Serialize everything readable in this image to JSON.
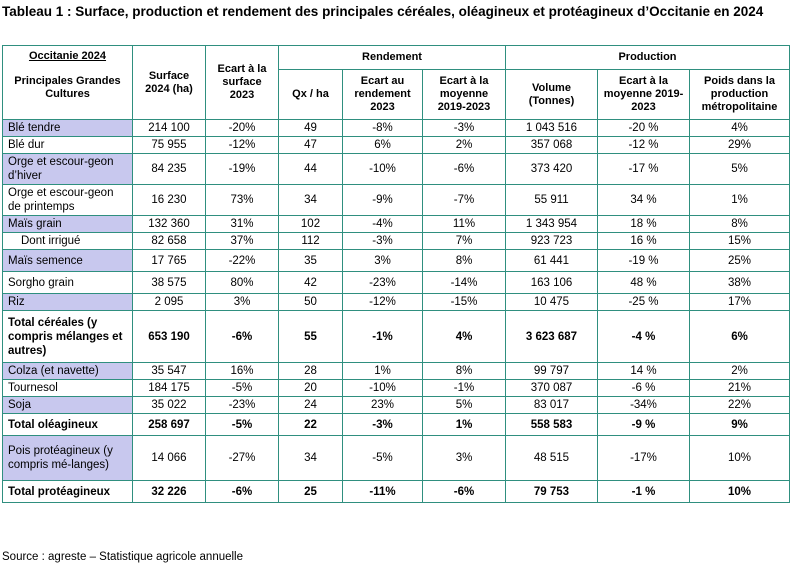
{
  "title": "Tableau 1 : Surface, production et rendement des principales céréales, oléagineux et protéagineux d’Occitanie en 2024",
  "header": {
    "region": "Occitanie 2024",
    "crops": "Principales Grandes Cultures",
    "surface": "Surface 2024 (ha)",
    "ecart_surface": "Ecart à la surface 2023",
    "rendement": "Rendement",
    "qx_ha": "Qx / ha",
    "ecart_rendement": "Ecart au rendement 2023",
    "ecart_moyenne_rdt": "Ecart à la moyenne 2019-2023",
    "production": "Production",
    "volume": "Volume (Tonnes)",
    "ecart_moyenne_prod": "Ecart à la moyenne 2019-2023",
    "poids": "Poids dans la production métropolitaine"
  },
  "rows": [
    {
      "label": "Blé tendre",
      "surface": "214 100",
      "ecart_surface": "-20%",
      "qx": "49",
      "ecart_rdt": "-8%",
      "ecart_moy_rdt": "-3%",
      "volume": "1 043 516",
      "ecart_moy_prod": "-20 %",
      "poids": "4%"
    },
    {
      "label": "Blé dur",
      "surface": "75 955",
      "ecart_surface": "-12%",
      "qx": "47",
      "ecart_rdt": "6%",
      "ecart_moy_rdt": "2%",
      "volume": "357 068",
      "ecart_moy_prod": "-12 %",
      "poids": "29%"
    },
    {
      "label": "Orge et escour-geon d’hiver",
      "surface": "84 235",
      "ecart_surface": "-19%",
      "qx": "44",
      "ecart_rdt": "-10%",
      "ecart_moy_rdt": "-6%",
      "volume": "373 420",
      "ecart_moy_prod": "-17 %",
      "poids": "5%"
    },
    {
      "label": "Orge et escour-geon de printemps",
      "surface": "16 230",
      "ecart_surface": "73%",
      "qx": "34",
      "ecart_rdt": "-9%",
      "ecart_moy_rdt": "-7%",
      "volume": "55 911",
      "ecart_moy_prod": "34 %",
      "poids": "1%"
    },
    {
      "label": "Maïs grain",
      "surface": "132 360",
      "ecart_surface": "31%",
      "qx": "102",
      "ecart_rdt": "-4%",
      "ecart_moy_rdt": "11%",
      "volume": "1 343 954",
      "ecart_moy_prod": "18 %",
      "poids": "8%"
    },
    {
      "label": "Dont irrigué",
      "surface": "82 658",
      "ecart_surface": "37%",
      "qx": "112",
      "ecart_rdt": "-3%",
      "ecart_moy_rdt": "7%",
      "volume": "923 723",
      "ecart_moy_prod": "16 %",
      "poids": "15%"
    },
    {
      "label": "Maïs semence",
      "surface": "17 765",
      "ecart_surface": "-22%",
      "qx": "35",
      "ecart_rdt": "3%",
      "ecart_moy_rdt": "8%",
      "volume": "61 441",
      "ecart_moy_prod": "-19 %",
      "poids": "25%"
    },
    {
      "label": "Sorgho grain",
      "surface": "38 575",
      "ecart_surface": "80%",
      "qx": "42",
      "ecart_rdt": "-23%",
      "ecart_moy_rdt": "-14%",
      "volume": "163 106",
      "ecart_moy_prod": "48 %",
      "poids": "38%"
    },
    {
      "label": "Riz",
      "surface": "2 095",
      "ecart_surface": "3%",
      "qx": "50",
      "ecart_rdt": "-12%",
      "ecart_moy_rdt": "-15%",
      "volume": "10 475",
      "ecart_moy_prod": "-25 %",
      "poids": "17%"
    },
    {
      "label": "Total céréales (y compris mélanges et autres)",
      "surface": "653 190",
      "ecart_surface": "-6%",
      "qx": "55",
      "ecart_rdt": "-1%",
      "ecart_moy_rdt": "4%",
      "volume": "3 623 687",
      "ecart_moy_prod": "-4 %",
      "poids": "6%"
    },
    {
      "label": "Colza (et navette)",
      "surface": "35 547",
      "ecart_surface": "16%",
      "qx": "28",
      "ecart_rdt": "1%",
      "ecart_moy_rdt": "8%",
      "volume": "99 797",
      "ecart_moy_prod": "14 %",
      "poids": "2%"
    },
    {
      "label": "Tournesol",
      "surface": "184 175",
      "ecart_surface": "-5%",
      "qx": "20",
      "ecart_rdt": "-10%",
      "ecart_moy_rdt": "-1%",
      "volume": "370 087",
      "ecart_moy_prod": "-6 %",
      "poids": "21%"
    },
    {
      "label": "Soja",
      "surface": "35 022",
      "ecart_surface": "-23%",
      "qx": "24",
      "ecart_rdt": "23%",
      "ecart_moy_rdt": "5%",
      "volume": "83 017",
      "ecart_moy_prod": "-34%",
      "poids": "22%"
    },
    {
      "label": "Total oléagineux",
      "surface": "258 697",
      "ecart_surface": "-5%",
      "qx": "22",
      "ecart_rdt": "-3%",
      "ecart_moy_rdt": "1%",
      "volume": "558 583",
      "ecart_moy_prod": "-9 %",
      "poids": "9%"
    },
    {
      "label": "Pois protéagineux (y compris mé-langes)",
      "surface": "14 066",
      "ecart_surface": "-27%",
      "qx": "34",
      "ecart_rdt": "-5%",
      "ecart_moy_rdt": "3%",
      "volume": "48 515",
      "ecart_moy_prod": "-17%",
      "poids": "10%"
    },
    {
      "label": "Total protéagineux",
      "surface": "32 226",
      "ecart_surface": "-6%",
      "qx": "25",
      "ecart_rdt": "-11%",
      "ecart_moy_rdt": "-6%",
      "volume": "79 753",
      "ecart_moy_prod": "-1 %",
      "poids": "10%"
    }
  ],
  "source": "Source : agreste – Statistique agricole annuelle"
}
